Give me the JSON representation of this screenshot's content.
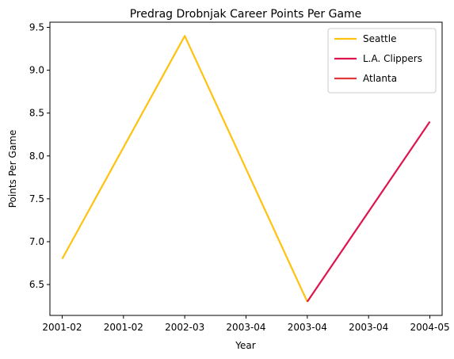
{
  "chart_data": {
    "type": "line",
    "title": "Predrag Drobnjak Career Points Per Game",
    "xlabel": "Year",
    "ylabel": "Points Per Game",
    "x_tick_labels": [
      "2001-02",
      "2001-02",
      "2002-03",
      "2003-04",
      "2003-04",
      "2003-04",
      "2004-05"
    ],
    "x_ticks": [
      2001,
      2001.5,
      2002,
      2002.5,
      2003,
      2003.5,
      2004
    ],
    "xlim": [
      2000.9,
      2004.1
    ],
    "y_ticks": [
      6.5,
      7.0,
      7.5,
      8.0,
      8.5,
      9.0,
      9.5
    ],
    "y_tick_labels": [
      "6.5",
      "7.0",
      "7.5",
      "8.0",
      "8.5",
      "9.0",
      "9.5"
    ],
    "ylim": [
      6.14,
      9.56
    ],
    "grid": false,
    "legend_position": "top-right",
    "series": [
      {
        "name": "Seattle",
        "color": "#FFC20E",
        "points": [
          [
            2001,
            6.8
          ],
          [
            2002,
            9.4
          ],
          [
            2003,
            6.3
          ]
        ]
      },
      {
        "name": "L.A. Clippers",
        "color": "#E0144C",
        "points": [
          [
            2003,
            6.3
          ],
          [
            2004,
            8.4
          ]
        ]
      },
      {
        "name": "Atlanta",
        "color": "#E03A3E",
        "points": []
      }
    ]
  }
}
